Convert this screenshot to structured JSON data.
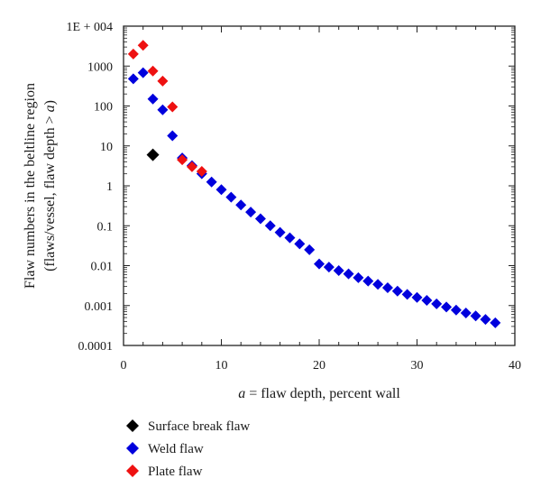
{
  "chart_data": {
    "type": "scatter",
    "x_label_prefix": "a",
    "x_label_rest": " = flaw depth, percent wall",
    "y_label_line1": "Flaw numbers in the beltline region",
    "y_label_line2_prefix": "(flaws/vessel, flaw depth > ",
    "y_label_line2_var": "a",
    "y_label_line2_suffix": ")",
    "xlim": [
      0,
      40
    ],
    "ylim": [
      0.0001,
      10000
    ],
    "y_scale": "log",
    "x_ticks": [
      0,
      10,
      20,
      30,
      40
    ],
    "x_tick_labels": [
      "0",
      "10",
      "20",
      "30",
      "40"
    ],
    "y_ticks": [
      0.0001,
      0.001,
      0.01,
      0.1,
      1,
      10,
      100,
      1000,
      10000
    ],
    "y_tick_labels": [
      "0.0001",
      "0.001",
      "0.01",
      "0.1",
      "1",
      "10",
      "100",
      "1000",
      "1E + 004"
    ],
    "grid": false,
    "legend_position": "below plot",
    "marker": "diamond",
    "series": [
      {
        "name": "Surface break flaw",
        "color": "#000000",
        "points": [
          [
            3,
            6
          ]
        ]
      },
      {
        "name": "Weld flaw",
        "color": "#0000dd",
        "points": [
          [
            1,
            480
          ],
          [
            2,
            680
          ],
          [
            3,
            150
          ],
          [
            4,
            80
          ],
          [
            5,
            18
          ],
          [
            6,
            5
          ],
          [
            7,
            3.2
          ],
          [
            8,
            2.0
          ],
          [
            9,
            1.25
          ],
          [
            10,
            0.8
          ],
          [
            11,
            0.52
          ],
          [
            12,
            0.33
          ],
          [
            13,
            0.22
          ],
          [
            14,
            0.15
          ],
          [
            15,
            0.1
          ],
          [
            16,
            0.068
          ],
          [
            17,
            0.05
          ],
          [
            18,
            0.035
          ],
          [
            19,
            0.025
          ],
          [
            20,
            0.011
          ],
          [
            21,
            0.0092
          ],
          [
            22,
            0.0075
          ],
          [
            23,
            0.0062
          ],
          [
            24,
            0.005
          ],
          [
            25,
            0.0041
          ],
          [
            26,
            0.0034
          ],
          [
            27,
            0.0028
          ],
          [
            28,
            0.0023
          ],
          [
            29,
            0.0019
          ],
          [
            30,
            0.0016
          ],
          [
            31,
            0.00135
          ],
          [
            32,
            0.0011
          ],
          [
            33,
            0.00092
          ],
          [
            34,
            0.00077
          ],
          [
            35,
            0.00065
          ],
          [
            36,
            0.00055
          ],
          [
            37,
            0.00045
          ],
          [
            38,
            0.00037
          ]
        ]
      },
      {
        "name": "Plate flaw",
        "color": "#ee1111",
        "points": [
          [
            1,
            2000
          ],
          [
            2,
            3300
          ],
          [
            3,
            750
          ],
          [
            4,
            420
          ],
          [
            5,
            95
          ],
          [
            6,
            4.5
          ],
          [
            7,
            3.0
          ],
          [
            8,
            2.3
          ]
        ]
      }
    ]
  }
}
